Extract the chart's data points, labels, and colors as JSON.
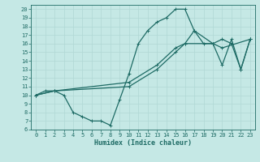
{
  "xlabel": "Humidex (Indice chaleur)",
  "xlim": [
    -0.5,
    23.5
  ],
  "ylim": [
    6,
    20.5
  ],
  "xticks": [
    0,
    1,
    2,
    3,
    4,
    5,
    6,
    7,
    8,
    9,
    10,
    11,
    12,
    13,
    14,
    15,
    16,
    17,
    18,
    19,
    20,
    21,
    22,
    23
  ],
  "yticks": [
    6,
    7,
    8,
    9,
    10,
    11,
    12,
    13,
    14,
    15,
    16,
    17,
    18,
    19,
    20
  ],
  "bg_color": "#c5e8e5",
  "grid_color": "#b0d8d5",
  "line_color": "#1e6b65",
  "line1_x": [
    0,
    1,
    2,
    3,
    4,
    5,
    6,
    7,
    8,
    9,
    10,
    11,
    12,
    13,
    14,
    15,
    16,
    17,
    18,
    19,
    20,
    21,
    22,
    23
  ],
  "line1_y": [
    10,
    10.5,
    10.5,
    10,
    8,
    7.5,
    7,
    7,
    6.5,
    9.5,
    12.5,
    16,
    17.5,
    18.5,
    19,
    20,
    20,
    17.5,
    16,
    16,
    13.5,
    16.5,
    13,
    16.5
  ],
  "line2_x": [
    0,
    2,
    10,
    13,
    15,
    16,
    17,
    19,
    20,
    21,
    22,
    23
  ],
  "line2_y": [
    10,
    10.5,
    11,
    13,
    15,
    16,
    17.5,
    16,
    16.5,
    16,
    13,
    16.5
  ],
  "line3_x": [
    0,
    2,
    10,
    13,
    15,
    16,
    19,
    20,
    23
  ],
  "line3_y": [
    10,
    10.5,
    11.5,
    13.5,
    15.5,
    16,
    16,
    15.5,
    16.5
  ],
  "marker_size": 2.5,
  "line_width": 0.9,
  "font_size": 6,
  "tick_font_size": 5
}
